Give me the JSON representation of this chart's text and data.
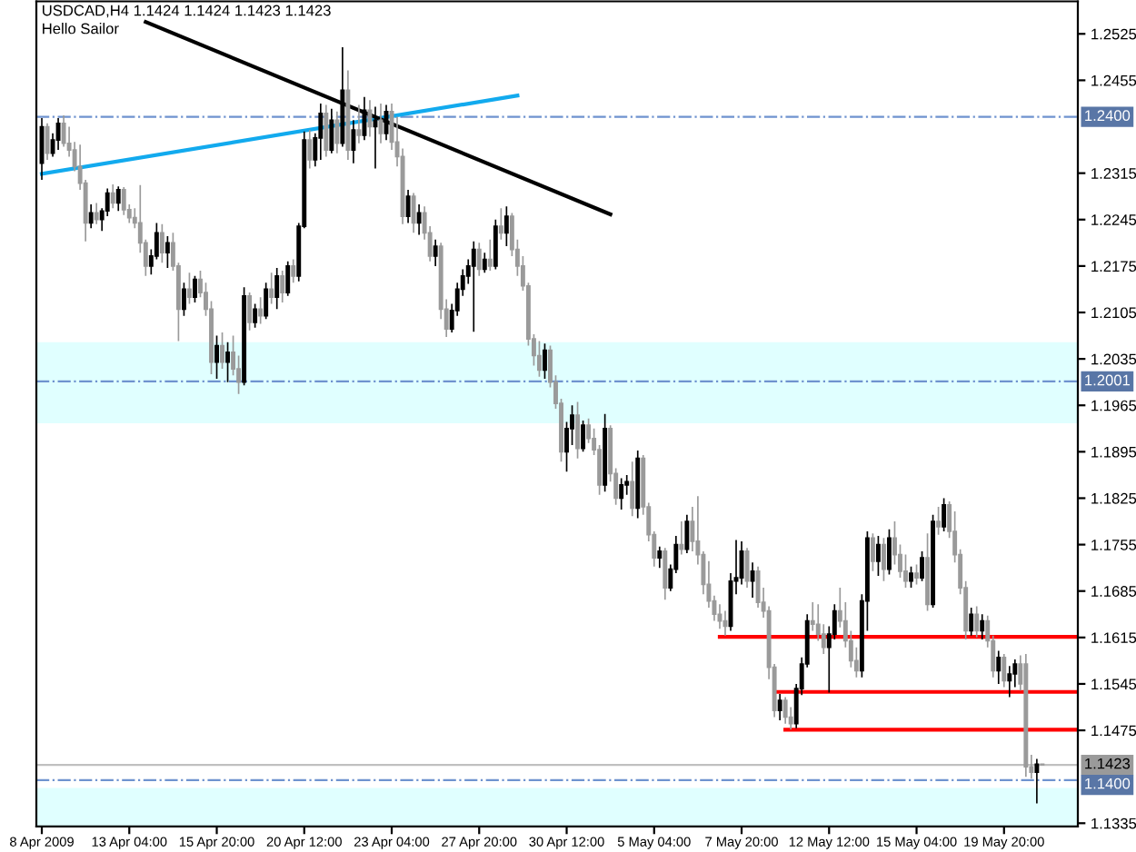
{
  "chart_data": {
    "type": "candlestick",
    "title": "USDCAD,H4 1.1424 1.1424 1.1423 1.1423",
    "subtitle": "Hello Sailor",
    "categories": [
      "8 Apr 2009",
      null,
      null,
      null,
      null,
      null,
      null,
      null,
      null,
      null,
      null,
      null,
      null,
      null,
      null,
      null,
      "13 Apr 04:00",
      null,
      null,
      null,
      null,
      null,
      null,
      null,
      null,
      null,
      null,
      null,
      null,
      null,
      null,
      null,
      "15 Apr 20:00",
      null,
      null,
      null,
      null,
      null,
      null,
      null,
      null,
      null,
      null,
      null,
      null,
      null,
      null,
      null,
      "20 Apr 12:00",
      null,
      null,
      null,
      null,
      null,
      null,
      null,
      null,
      null,
      null,
      null,
      null,
      null,
      null,
      null,
      "23 Apr 04:00",
      null,
      null,
      null,
      null,
      null,
      null,
      null,
      null,
      null,
      null,
      null,
      null,
      null,
      null,
      null,
      "27 Apr 20:00",
      null,
      null,
      null,
      null,
      null,
      null,
      null,
      null,
      null,
      null,
      null,
      null,
      null,
      null,
      null,
      "30 Apr 12:00",
      null,
      null,
      null,
      null,
      null,
      null,
      null,
      null,
      null,
      null,
      null,
      null,
      null,
      null,
      null,
      "5 May 04:00",
      null,
      null,
      null,
      null,
      null,
      null,
      null,
      null,
      null,
      null,
      null,
      null,
      null,
      null,
      null,
      "7 May 20:00",
      null,
      null,
      null,
      null,
      null,
      null,
      null,
      null,
      null,
      null,
      null,
      null,
      null,
      null,
      null,
      "12 May 12:00",
      null,
      null,
      null,
      null,
      null,
      null,
      null,
      null,
      null,
      null,
      null,
      null,
      null,
      null,
      null,
      "15 May 04:00",
      null,
      null,
      null,
      null,
      null,
      null,
      null,
      null,
      null,
      null,
      null,
      null,
      null,
      null,
      null,
      "19 May 20:00",
      null,
      null,
      null,
      null,
      null,
      null,
      null,
      null,
      null,
      null,
      null,
      null,
      null
    ],
    "ohlc": [
      [
        1.233,
        1.2398,
        1.2305,
        1.2385
      ],
      [
        1.2385,
        1.239,
        1.2335,
        1.2345
      ],
      [
        1.2345,
        1.2375,
        1.234,
        1.2365
      ],
      [
        1.2365,
        1.2398,
        1.235,
        1.239
      ],
      [
        1.239,
        1.2402,
        1.2355,
        1.236
      ],
      [
        1.236,
        1.2385,
        1.234,
        1.235
      ],
      [
        1.235,
        1.2362,
        1.2318,
        1.2325
      ],
      [
        1.2325,
        1.2358,
        1.229,
        1.23
      ],
      [
        1.23,
        1.2305,
        1.2212,
        1.224
      ],
      [
        1.224,
        1.2268,
        1.2232,
        1.2255
      ],
      [
        1.2255,
        1.227,
        1.2238,
        1.2245
      ],
      [
        1.2245,
        1.2262,
        1.2228,
        1.2258
      ],
      [
        1.2258,
        1.2292,
        1.225,
        1.2285
      ],
      [
        1.2285,
        1.2298,
        1.2262,
        1.227
      ],
      [
        1.227,
        1.2295,
        1.2258,
        1.229
      ],
      [
        1.229,
        1.2294,
        1.2252,
        1.226
      ],
      [
        1.226,
        1.2268,
        1.224,
        1.2248
      ],
      [
        1.2248,
        1.2262,
        1.2232,
        1.224
      ],
      [
        1.224,
        1.2297,
        1.2195,
        1.221
      ],
      [
        1.221,
        1.2215,
        1.216,
        1.2175
      ],
      [
        1.2175,
        1.22,
        1.2162,
        1.219
      ],
      [
        1.219,
        1.224,
        1.2185,
        1.2225
      ],
      [
        1.2225,
        1.2238,
        1.218,
        1.2195
      ],
      [
        1.2195,
        1.222,
        1.2172,
        1.221
      ],
      [
        1.221,
        1.2225,
        1.2168,
        1.2175
      ],
      [
        1.2175,
        1.218,
        1.2062,
        1.211
      ],
      [
        1.211,
        1.215,
        1.21,
        1.214
      ],
      [
        1.214,
        1.2165,
        1.2118,
        1.2128
      ],
      [
        1.2128,
        1.216,
        1.212,
        1.2155
      ],
      [
        1.2155,
        1.2168,
        1.2128,
        1.2135
      ],
      [
        1.2135,
        1.215,
        1.21,
        1.211
      ],
      [
        1.211,
        1.2122,
        1.2012,
        1.203
      ],
      [
        1.203,
        1.207,
        1.2005,
        1.2055
      ],
      [
        1.2055,
        1.2075,
        1.202,
        1.203
      ],
      [
        1.203,
        1.206,
        1.2,
        1.2045
      ],
      [
        1.2045,
        1.207,
        1.201,
        1.202
      ],
      [
        1.202,
        1.204,
        1.1982,
        1.2
      ],
      [
        1.2,
        1.2143,
        1.1995,
        1.213
      ],
      [
        1.213,
        1.2135,
        1.2078,
        1.209
      ],
      [
        1.209,
        1.2118,
        1.2082,
        1.211
      ],
      [
        1.211,
        1.2128,
        1.2088,
        1.21
      ],
      [
        1.21,
        1.215,
        1.2095,
        1.214
      ],
      [
        1.214,
        1.2165,
        1.2118,
        1.2128
      ],
      [
        1.2128,
        1.2172,
        1.211,
        1.216
      ],
      [
        1.216,
        1.2168,
        1.212,
        1.2135
      ],
      [
        1.2135,
        1.2182,
        1.213,
        1.2175
      ],
      [
        1.2175,
        1.2185,
        1.215,
        1.216
      ],
      [
        1.216,
        1.224,
        1.2152,
        1.2235
      ],
      [
        1.2235,
        1.2378,
        1.2232,
        1.2365
      ],
      [
        1.2365,
        1.238,
        1.2322,
        1.2335
      ],
      [
        1.2335,
        1.2375,
        1.2325,
        1.2368
      ],
      [
        1.2368,
        1.242,
        1.2335,
        1.2405
      ],
      [
        1.2405,
        1.2418,
        1.234,
        1.235
      ],
      [
        1.235,
        1.2412,
        1.2345,
        1.2395
      ],
      [
        1.2395,
        1.2408,
        1.2345,
        1.236
      ],
      [
        1.236,
        1.2505,
        1.2355,
        1.244
      ],
      [
        1.244,
        1.247,
        1.2335,
        1.235
      ],
      [
        1.235,
        1.2395,
        1.233,
        1.238
      ],
      [
        1.238,
        1.2418,
        1.236,
        1.2372
      ],
      [
        1.2372,
        1.243,
        1.2365,
        1.241
      ],
      [
        1.241,
        1.2425,
        1.237,
        1.2385
      ],
      [
        1.2385,
        1.2415,
        1.2322,
        1.2395
      ],
      [
        1.2395,
        1.242,
        1.236,
        1.2375
      ],
      [
        1.2375,
        1.2418,
        1.2365,
        1.2408
      ],
      [
        1.2408,
        1.242,
        1.235,
        1.2362
      ],
      [
        1.2362,
        1.24,
        1.2325,
        1.234
      ],
      [
        1.234,
        1.2352,
        1.2238,
        1.225
      ],
      [
        1.225,
        1.229,
        1.224,
        1.228
      ],
      [
        1.228,
        1.2285,
        1.2225,
        1.224
      ],
      [
        1.224,
        1.2268,
        1.2222,
        1.2255
      ],
      [
        1.2255,
        1.2265,
        1.2215,
        1.2225
      ],
      [
        1.2225,
        1.2235,
        1.2182,
        1.219
      ],
      [
        1.219,
        1.2215,
        1.2175,
        1.2205
      ],
      [
        1.2205,
        1.221,
        1.2095,
        1.211
      ],
      [
        1.211,
        1.2125,
        1.2068,
        1.208
      ],
      [
        1.208,
        1.2118,
        1.2075,
        1.2108
      ],
      [
        1.2108,
        1.215,
        1.21,
        1.214
      ],
      [
        1.214,
        1.217,
        1.213,
        1.216
      ],
      [
        1.216,
        1.2185,
        1.2148,
        1.2175
      ],
      [
        1.2175,
        1.2212,
        1.2076,
        1.22
      ],
      [
        1.22,
        1.221,
        1.216,
        1.217
      ],
      [
        1.217,
        1.2195,
        1.2165,
        1.2185
      ],
      [
        1.2185,
        1.2215,
        1.2168,
        1.2175
      ],
      [
        1.2175,
        1.2245,
        1.217,
        1.2235
      ],
      [
        1.2235,
        1.2262,
        1.2215,
        1.2225
      ],
      [
        1.2225,
        1.2265,
        1.2205,
        1.225
      ],
      [
        1.225,
        1.2255,
        1.219,
        1.22
      ],
      [
        1.22,
        1.2215,
        1.216,
        1.2175
      ],
      [
        1.2175,
        1.219,
        1.2138,
        1.2145
      ],
      [
        1.2145,
        1.215,
        1.2055,
        1.2065
      ],
      [
        1.2065,
        1.2072,
        1.2025,
        1.204
      ],
      [
        1.204,
        1.2062,
        1.2008,
        1.2018
      ],
      [
        1.2018,
        1.2058,
        1.2005,
        1.2048
      ],
      [
        1.2048,
        1.2055,
        1.1992,
        1.2
      ],
      [
        1.2,
        1.201,
        1.196,
        1.1968
      ],
      [
        1.1968,
        1.1975,
        1.188,
        1.1895
      ],
      [
        1.1895,
        1.194,
        1.1865,
        1.193
      ],
      [
        1.193,
        1.1965,
        1.1905,
        1.195
      ],
      [
        1.195,
        1.197,
        1.1885,
        1.19
      ],
      [
        1.19,
        1.1942,
        1.1895,
        1.1935
      ],
      [
        1.1935,
        1.1945,
        1.1908,
        1.1915
      ],
      [
        1.1915,
        1.193,
        1.189,
        1.1898
      ],
      [
        1.1898,
        1.1905,
        1.183,
        1.1845
      ],
      [
        1.1845,
        1.1952,
        1.1835,
        1.193
      ],
      [
        1.193,
        1.1935,
        1.185,
        1.1862
      ],
      [
        1.1862,
        1.187,
        1.1815,
        1.1825
      ],
      [
        1.1825,
        1.1855,
        1.1808,
        1.1845
      ],
      [
        1.1845,
        1.186,
        1.183,
        1.185
      ],
      [
        1.185,
        1.188,
        1.1798,
        1.181
      ],
      [
        1.181,
        1.1897,
        1.1795,
        1.1885
      ],
      [
        1.1885,
        1.189,
        1.18,
        1.1812
      ],
      [
        1.1812,
        1.1818,
        1.176,
        1.177
      ],
      [
        1.177,
        1.1775,
        1.1722,
        1.1735
      ],
      [
        1.1735,
        1.1752,
        1.172,
        1.1745
      ],
      [
        1.1745,
        1.175,
        1.1672,
        1.169
      ],
      [
        1.169,
        1.1725,
        1.1685,
        1.1718
      ],
      [
        1.1718,
        1.1768,
        1.1712,
        1.1755
      ],
      [
        1.1755,
        1.179,
        1.174,
        1.1748
      ],
      [
        1.1748,
        1.18,
        1.1742,
        1.179
      ],
      [
        1.179,
        1.1812,
        1.1745,
        1.176
      ],
      [
        1.176,
        1.1828,
        1.1725,
        1.174
      ],
      [
        1.174,
        1.1745,
        1.168,
        1.1695
      ],
      [
        1.1695,
        1.173,
        1.166,
        1.167
      ],
      [
        1.167,
        1.1678,
        1.164,
        1.165
      ],
      [
        1.165,
        1.1665,
        1.1628,
        1.164
      ],
      [
        1.164,
        1.1655,
        1.1618,
        1.1632
      ],
      [
        1.1632,
        1.1712,
        1.1625,
        1.17
      ],
      [
        1.17,
        1.1762,
        1.168,
        1.1705
      ],
      [
        1.1705,
        1.176,
        1.1695,
        1.1745
      ],
      [
        1.1745,
        1.175,
        1.169,
        1.17
      ],
      [
        1.17,
        1.1728,
        1.1675,
        1.1715
      ],
      [
        1.1715,
        1.1722,
        1.166,
        1.1668
      ],
      [
        1.1668,
        1.169,
        1.1645,
        1.1655
      ],
      [
        1.1655,
        1.1662,
        1.1552,
        1.157
      ],
      [
        1.157,
        1.1575,
        1.1495,
        1.1505
      ],
      [
        1.1505,
        1.153,
        1.149,
        1.152
      ],
      [
        1.152,
        1.1525,
        1.1485,
        1.1495
      ],
      [
        1.1495,
        1.151,
        1.1476,
        1.1485
      ],
      [
        1.1485,
        1.1545,
        1.1478,
        1.1538
      ],
      [
        1.1538,
        1.1585,
        1.1528,
        1.1575
      ],
      [
        1.1575,
        1.165,
        1.157,
        1.164
      ],
      [
        1.164,
        1.1668,
        1.1625,
        1.1635
      ],
      [
        1.1635,
        1.1665,
        1.161,
        1.162
      ],
      [
        1.162,
        1.1635,
        1.159,
        1.16
      ],
      [
        1.16,
        1.1632,
        1.1532,
        1.162
      ],
      [
        1.162,
        1.1665,
        1.1612,
        1.1655
      ],
      [
        1.1655,
        1.169,
        1.163,
        1.164
      ],
      [
        1.164,
        1.1668,
        1.16,
        1.161
      ],
      [
        1.161,
        1.1625,
        1.157,
        1.158
      ],
      [
        1.158,
        1.16,
        1.1555,
        1.1565
      ],
      [
        1.1565,
        1.168,
        1.1555,
        1.167
      ],
      [
        1.167,
        1.1775,
        1.1625,
        1.1765
      ],
      [
        1.1765,
        1.1772,
        1.1715,
        1.173
      ],
      [
        1.173,
        1.1768,
        1.1708,
        1.1755
      ],
      [
        1.1755,
        1.1765,
        1.17,
        1.1718
      ],
      [
        1.1718,
        1.1778,
        1.171,
        1.1765
      ],
      [
        1.1765,
        1.179,
        1.1725,
        1.174
      ],
      [
        1.174,
        1.1755,
        1.1705,
        1.1715
      ],
      [
        1.1715,
        1.174,
        1.169,
        1.17
      ],
      [
        1.17,
        1.1722,
        1.169,
        1.1712
      ],
      [
        1.1712,
        1.1725,
        1.1695,
        1.1705
      ],
      [
        1.1705,
        1.1745,
        1.17,
        1.1735
      ],
      [
        1.1735,
        1.1772,
        1.1655,
        1.1665
      ],
      [
        1.1665,
        1.18,
        1.166,
        1.179
      ],
      [
        1.179,
        1.1812,
        1.177,
        1.1782
      ],
      [
        1.1782,
        1.1825,
        1.1775,
        1.1815
      ],
      [
        1.1815,
        1.182,
        1.1765,
        1.1775
      ],
      [
        1.1775,
        1.1805,
        1.1728,
        1.174
      ],
      [
        1.174,
        1.1748,
        1.168,
        1.169
      ],
      [
        1.169,
        1.17,
        1.1612,
        1.1625
      ],
      [
        1.1625,
        1.166,
        1.1618,
        1.165
      ],
      [
        1.165,
        1.1662,
        1.1615,
        1.1625
      ],
      [
        1.1625,
        1.165,
        1.1612,
        1.164
      ],
      [
        1.164,
        1.1648,
        1.16,
        1.161
      ],
      [
        1.161,
        1.1618,
        1.1555,
        1.1565
      ],
      [
        1.1565,
        1.1595,
        1.1545,
        1.1585
      ],
      [
        1.1585,
        1.159,
        1.154,
        1.155
      ],
      [
        1.155,
        1.1572,
        1.1525,
        1.156
      ],
      [
        1.156,
        1.1582,
        1.154,
        1.1575
      ],
      [
        1.1575,
        1.1588,
        1.1535,
        1.1545
      ],
      [
        1.1575,
        1.159,
        1.1405,
        1.142
      ],
      [
        1.142,
        1.1438,
        1.1402,
        1.1412
      ],
      [
        1.1412,
        1.1432,
        1.1365,
        1.1424
      ],
      [
        1.1424,
        1.1424,
        1.1423,
        1.1423
      ],
      null,
      null,
      null,
      null,
      null,
      null
    ],
    "colors": [
      "#000000",
      "#9a9a9a",
      "#000000",
      "#000000",
      "#9a9a9a",
      "#9a9a9a",
      "#9a9a9a",
      "#9a9a9a",
      "#9a9a9a",
      "#000000",
      "#9a9a9a",
      "#000000",
      "#000000",
      "#9a9a9a",
      "#000000",
      "#9a9a9a",
      "#9a9a9a",
      "#9a9a9a",
      "#9a9a9a",
      "#9a9a9a",
      "#000000",
      "#000000",
      "#9a9a9a",
      "#000000",
      "#9a9a9a",
      "#9a9a9a",
      "#000000",
      "#9a9a9a",
      "#000000",
      "#9a9a9a",
      "#9a9a9a",
      "#9a9a9a",
      "#000000",
      "#9a9a9a",
      "#000000",
      "#9a9a9a",
      "#9a9a9a",
      "#000000",
      "#9a9a9a",
      "#000000",
      "#9a9a9a",
      "#000000",
      "#9a9a9a",
      "#000000",
      "#9a9a9a",
      "#000000",
      "#9a9a9a",
      "#000000",
      "#000000",
      "#9a9a9a",
      "#000000",
      "#000000",
      "#9a9a9a",
      "#000000",
      "#9a9a9a",
      "#000000",
      "#9a9a9a",
      "#000000",
      "#9a9a9a",
      "#000000",
      "#9a9a9a",
      "#000000",
      "#9a9a9a",
      "#000000",
      "#9a9a9a",
      "#9a9a9a",
      "#9a9a9a",
      "#000000",
      "#9a9a9a",
      "#000000",
      "#9a9a9a",
      "#9a9a9a",
      "#000000",
      "#9a9a9a",
      "#9a9a9a",
      "#000000",
      "#000000",
      "#000000",
      "#000000",
      "#000000",
      "#9a9a9a",
      "#000000",
      "#9a9a9a",
      "#000000",
      "#9a9a9a",
      "#000000",
      "#9a9a9a",
      "#9a9a9a",
      "#9a9a9a",
      "#9a9a9a",
      "#9a9a9a",
      "#9a9a9a",
      "#000000",
      "#9a9a9a",
      "#9a9a9a",
      "#9a9a9a",
      "#000000",
      "#000000",
      "#9a9a9a",
      "#000000",
      "#9a9a9a",
      "#9a9a9a",
      "#9a9a9a",
      "#000000",
      "#9a9a9a",
      "#9a9a9a",
      "#000000",
      "#000000",
      "#9a9a9a",
      "#000000",
      "#9a9a9a",
      "#9a9a9a",
      "#9a9a9a",
      "#000000",
      "#9a9a9a",
      "#000000",
      "#000000",
      "#9a9a9a",
      "#000000",
      "#9a9a9a",
      "#9a9a9a",
      "#9a9a9a",
      "#9a9a9a",
      "#9a9a9a",
      "#9a9a9a",
      "#9a9a9a",
      "#000000",
      "#000000",
      "#000000",
      "#9a9a9a",
      "#000000",
      "#9a9a9a",
      "#9a9a9a",
      "#9a9a9a",
      "#9a9a9a",
      "#000000",
      "#9a9a9a",
      "#9a9a9a",
      "#000000",
      "#000000",
      "#000000",
      "#9a9a9a",
      "#9a9a9a",
      "#9a9a9a",
      "#000000",
      "#000000",
      "#9a9a9a",
      "#9a9a9a",
      "#9a9a9a",
      "#9a9a9a",
      "#000000",
      "#000000",
      "#9a9a9a",
      "#000000",
      "#9a9a9a",
      "#000000",
      "#9a9a9a",
      "#9a9a9a",
      "#9a9a9a",
      "#000000",
      "#9a9a9a",
      "#000000",
      "#9a9a9a",
      "#000000",
      "#9a9a9a",
      "#000000",
      "#9a9a9a",
      "#9a9a9a",
      "#9a9a9a",
      "#9a9a9a",
      "#000000",
      "#9a9a9a",
      "#000000",
      "#9a9a9a",
      "#9a9a9a",
      "#000000",
      "#9a9a9a",
      "#000000",
      "#000000",
      "#9a9a9a",
      "#9a9a9a",
      "#9a9a9a",
      "#000000",
      "#9a9a9a",
      null,
      null,
      null,
      null,
      null,
      null
    ],
    "series": [
      {
        "type": "line",
        "color": "#12aaee",
        "values": [
          1.2314,
          null,
          null,
          null,
          null,
          null,
          null,
          null,
          null,
          null,
          null,
          null,
          null,
          null,
          null,
          null,
          null,
          null,
          null,
          null,
          null,
          null,
          null,
          null,
          null,
          null,
          null,
          null,
          null,
          null,
          null,
          null,
          null,
          null,
          null,
          null,
          null,
          null,
          null,
          null,
          null,
          null,
          null,
          null,
          null,
          null,
          null,
          null,
          null,
          null,
          null,
          null,
          null,
          null,
          null,
          null,
          null,
          null,
          null,
          null,
          null,
          null,
          null,
          null,
          null,
          null,
          null,
          null,
          null,
          null,
          null,
          null,
          null,
          null,
          null,
          null,
          null,
          null,
          null,
          null,
          null,
          null,
          null,
          null,
          null,
          null,
          null,
          1.2432,
          null,
          null,
          null,
          null,
          null,
          null,
          null,
          null,
          null,
          null,
          null,
          null,
          null,
          null,
          null,
          null,
          null,
          null,
          null,
          null,
          null,
          null,
          null,
          null,
          null,
          null,
          null,
          null,
          null,
          null,
          null,
          null,
          null,
          null,
          null,
          null,
          null,
          null,
          null,
          null,
          null,
          null,
          null,
          null,
          null,
          null,
          null,
          null,
          null,
          null,
          null,
          null,
          null,
          null,
          null,
          null,
          null,
          null,
          null,
          null,
          null,
          null,
          null,
          null,
          null,
          null,
          null,
          null,
          null,
          null,
          null,
          null,
          null,
          null,
          null,
          null,
          null,
          null,
          null,
          null,
          null,
          null,
          null,
          null,
          null,
          null,
          null,
          null,
          null,
          null,
          null,
          null,
          null,
          null,
          null,
          null,
          null,
          null,
          null,
          null,
          null,
          null
        ]
      },
      {
        "type": "line",
        "color": "#000000",
        "values": [
          null,
          null,
          null,
          null,
          null,
          null,
          null,
          null,
          null,
          null,
          null,
          null,
          null,
          null,
          null,
          null,
          null,
          null,
          null,
          1.2543,
          null,
          null,
          null,
          null,
          null,
          null,
          null,
          null,
          null,
          null,
          null,
          null,
          null,
          null,
          null,
          null,
          null,
          null,
          null,
          null,
          null,
          null,
          null,
          null,
          null,
          null,
          null,
          null,
          null,
          null,
          null,
          null,
          null,
          null,
          null,
          null,
          null,
          null,
          null,
          null,
          null,
          null,
          null,
          null,
          null,
          null,
          null,
          null,
          null,
          null,
          null,
          null,
          null,
          null,
          null,
          null,
          null,
          null,
          null,
          null,
          null,
          null,
          null,
          null,
          null,
          null,
          null,
          null,
          null,
          null,
          null,
          null,
          null,
          null,
          null,
          null,
          null,
          null,
          null,
          null,
          null,
          null,
          null,
          null,
          1.2253,
          null,
          null,
          null,
          null,
          null,
          null,
          null,
          null,
          null,
          null,
          null,
          null,
          null,
          null,
          null,
          null,
          null,
          null,
          null,
          null,
          null,
          null,
          null,
          null,
          null,
          null,
          null,
          null,
          null,
          null,
          null,
          null,
          null,
          null,
          null,
          null,
          null,
          null,
          null,
          null,
          null,
          null,
          null,
          null,
          null,
          null,
          null,
          null,
          null,
          null,
          null,
          null,
          null,
          null,
          null,
          null,
          null,
          null,
          null,
          null,
          null,
          null,
          null,
          null,
          null,
          null,
          null,
          null,
          null,
          null,
          null,
          null,
          null,
          null,
          null,
          null,
          null,
          null,
          null,
          null,
          null,
          null,
          null,
          null,
          null
        ]
      },
      {
        "type": "line",
        "color": "#ff0000",
        "values": [
          null,
          null,
          null,
          null,
          null,
          null,
          null,
          null,
          null,
          null,
          null,
          null,
          null,
          null,
          null,
          null,
          null,
          null,
          null,
          null,
          null,
          null,
          null,
          null,
          null,
          null,
          null,
          null,
          null,
          null,
          null,
          null,
          null,
          null,
          null,
          null,
          null,
          null,
          null,
          null,
          null,
          null,
          null,
          null,
          null,
          null,
          null,
          null,
          null,
          null,
          null,
          null,
          null,
          null,
          null,
          null,
          null,
          null,
          null,
          null,
          null,
          null,
          null,
          null,
          null,
          null,
          null,
          null,
          null,
          null,
          null,
          null,
          null,
          null,
          null,
          null,
          null,
          null,
          null,
          null,
          null,
          null,
          null,
          null,
          null,
          null,
          null,
          null,
          null,
          null,
          null,
          null,
          null,
          null,
          null,
          null,
          null,
          null,
          null,
          null,
          null,
          null,
          null,
          null,
          null,
          null,
          null,
          null,
          null,
          null,
          null,
          null,
          null,
          null,
          null,
          null,
          null,
          null,
          null,
          null,
          null,
          null,
          null,
          null,
          1.1616,
          null,
          null,
          null,
          null,
          null,
          null,
          null,
          null,
          null,
          null,
          null,
          null,
          null,
          null,
          null,
          null,
          null,
          null,
          null,
          null,
          null,
          null,
          null,
          null,
          null,
          null,
          null,
          null,
          null,
          null,
          null,
          null,
          null,
          null,
          null,
          null,
          null,
          null,
          null,
          null,
          null,
          null,
          null,
          null,
          null,
          null,
          null,
          null,
          null,
          null,
          null,
          null,
          null,
          null,
          null,
          null,
          null,
          null,
          null,
          null,
          null,
          null,
          null,
          null,
          1.1616
        ]
      },
      {
        "type": "line",
        "color": "#ff0000",
        "values": [
          null,
          null,
          null,
          null,
          null,
          null,
          null,
          null,
          null,
          null,
          null,
          null,
          null,
          null,
          null,
          null,
          null,
          null,
          null,
          null,
          null,
          null,
          null,
          null,
          null,
          null,
          null,
          null,
          null,
          null,
          null,
          null,
          null,
          null,
          null,
          null,
          null,
          null,
          null,
          null,
          null,
          null,
          null,
          null,
          null,
          null,
          null,
          null,
          null,
          null,
          null,
          null,
          null,
          null,
          null,
          null,
          null,
          null,
          null,
          null,
          null,
          null,
          null,
          null,
          null,
          null,
          null,
          null,
          null,
          null,
          null,
          null,
          null,
          null,
          null,
          null,
          null,
          null,
          null,
          null,
          null,
          null,
          null,
          null,
          null,
          null,
          null,
          null,
          null,
          null,
          null,
          null,
          null,
          null,
          null,
          null,
          null,
          null,
          null,
          null,
          null,
          null,
          null,
          null,
          null,
          null,
          null,
          null,
          null,
          null,
          null,
          null,
          null,
          null,
          null,
          null,
          null,
          null,
          null,
          null,
          null,
          null,
          null,
          null,
          null,
          null,
          null,
          null,
          null,
          null,
          null,
          null,
          null,
          null,
          1.1533,
          null,
          null,
          null,
          null,
          null,
          null,
          null,
          null,
          null,
          null,
          null,
          null,
          null,
          null,
          null,
          null,
          null,
          null,
          null,
          null,
          null,
          null,
          null,
          null,
          null,
          null,
          null,
          null,
          null,
          null,
          null,
          null,
          null,
          null,
          null,
          null,
          null,
          null,
          null,
          null,
          null,
          null,
          null,
          null,
          null,
          null,
          null,
          null,
          null,
          null,
          null,
          null,
          null,
          null,
          1.1533
        ]
      },
      {
        "type": "line",
        "color": "#ff0000",
        "values": [
          null,
          null,
          null,
          null,
          null,
          null,
          null,
          null,
          null,
          null,
          null,
          null,
          null,
          null,
          null,
          null,
          null,
          null,
          null,
          null,
          null,
          null,
          null,
          null,
          null,
          null,
          null,
          null,
          null,
          null,
          null,
          null,
          null,
          null,
          null,
          null,
          null,
          null,
          null,
          null,
          null,
          null,
          null,
          null,
          null,
          null,
          null,
          null,
          null,
          null,
          null,
          null,
          null,
          null,
          null,
          null,
          null,
          null,
          null,
          null,
          null,
          null,
          null,
          null,
          null,
          null,
          null,
          null,
          null,
          null,
          null,
          null,
          null,
          null,
          null,
          null,
          null,
          null,
          null,
          null,
          null,
          null,
          null,
          null,
          null,
          null,
          null,
          null,
          null,
          null,
          null,
          null,
          null,
          null,
          null,
          null,
          null,
          null,
          null,
          null,
          null,
          null,
          null,
          null,
          null,
          null,
          null,
          null,
          null,
          null,
          null,
          null,
          null,
          null,
          null,
          null,
          null,
          null,
          null,
          null,
          null,
          null,
          null,
          null,
          null,
          null,
          null,
          null,
          null,
          null,
          null,
          null,
          null,
          null,
          null,
          null,
          1.1476,
          null,
          null,
          null,
          null,
          null,
          null,
          null,
          null,
          null,
          null,
          null,
          null,
          null,
          null,
          null,
          null,
          null,
          null,
          null,
          null,
          null,
          null,
          null,
          null,
          null,
          null,
          null,
          null,
          null,
          null,
          null,
          null,
          null,
          null,
          null,
          null,
          null,
          null,
          null,
          null,
          null,
          null,
          null,
          null,
          null,
          null,
          null,
          null,
          null,
          null,
          null,
          null,
          1.1476
        ]
      }
    ],
    "ylim": [
      1.133,
      1.2574
    ],
    "yticks": [
      1.1335,
      1.1475,
      1.1545,
      1.1615,
      1.1685,
      1.1755,
      1.1825,
      1.1895,
      1.1965,
      1.2035,
      1.2105,
      1.2175,
      1.2245,
      1.2315,
      1.2455,
      1.2525
    ],
    "ref_lines": [
      {
        "axis": "y",
        "value": 1.24,
        "label": "1.2400",
        "color": "#6f93cf",
        "line_style": "dashdot"
      },
      {
        "axis": "y",
        "value": 1.2001,
        "label": "1.2001",
        "color": "#6f93cf",
        "line_style": "dashdot"
      },
      {
        "axis": "y",
        "value": 1.14,
        "label": "1.1400",
        "color": "#6f93cf",
        "line_style": "dashdot"
      },
      {
        "axis": "y",
        "value": 1.1423,
        "label": "1.1423",
        "color": "#c0c0c0",
        "line_style": "solid"
      }
    ],
    "bands": [
      {
        "axis": "y",
        "from": 1.1938,
        "to": 1.206,
        "color": "#e0ffff"
      },
      {
        "axis": "y",
        "from": 1.133,
        "to": 1.1388,
        "color": "#e0ffff"
      }
    ]
  }
}
